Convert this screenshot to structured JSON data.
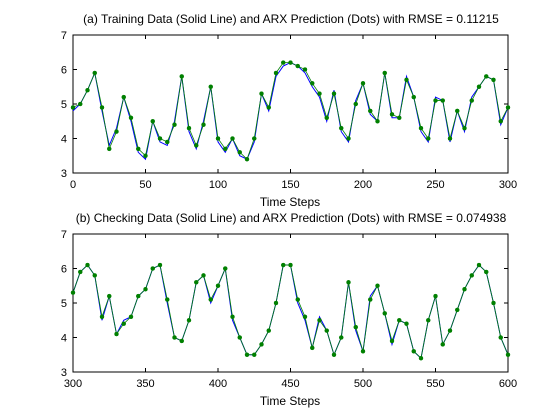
{
  "colors": {
    "training_line": "#0000ff",
    "prediction_dots": "#008000",
    "axes": "#000000",
    "background": "#ffffff"
  },
  "chart_data": [
    {
      "type": "line",
      "title": "(a) Training Data (Solid Line) and ARX Prediction (Dots) with RMSE = 0.11215",
      "xlabel": "Time Steps",
      "ylabel": "",
      "xlim": [
        0,
        300
      ],
      "ylim": [
        3,
        7
      ],
      "x_ticks": [
        "0",
        "50",
        "100",
        "150",
        "200",
        "250",
        "300"
      ],
      "y_ticks": [
        "3",
        "4",
        "5",
        "6",
        "7"
      ],
      "grid": false,
      "x": [
        0,
        5,
        10,
        15,
        20,
        25,
        30,
        35,
        40,
        45,
        50,
        55,
        60,
        65,
        70,
        75,
        80,
        85,
        90,
        95,
        100,
        105,
        110,
        115,
        120,
        125,
        130,
        135,
        140,
        145,
        150,
        155,
        160,
        165,
        170,
        175,
        180,
        185,
        190,
        195,
        200,
        205,
        210,
        215,
        220,
        225,
        230,
        235,
        240,
        245,
        250,
        255,
        260,
        265,
        270,
        275,
        280,
        285,
        290,
        295,
        300
      ],
      "series": [
        {
          "name": "",
          "role": "data",
          "style": "solid line",
          "values": [
            4.8,
            5.0,
            5.4,
            5.9,
            4.8,
            3.8,
            4.3,
            5.2,
            4.5,
            3.6,
            3.4,
            4.5,
            3.9,
            3.8,
            4.5,
            5.8,
            4.2,
            3.7,
            4.5,
            5.5,
            3.9,
            3.6,
            4.0,
            3.5,
            3.4,
            3.9,
            5.3,
            4.8,
            5.8,
            6.1,
            6.2,
            6.1,
            5.9,
            5.5,
            5.2,
            4.5,
            5.4,
            4.2,
            3.9,
            5.1,
            5.6,
            4.7,
            4.5,
            5.9,
            4.6,
            4.6,
            5.8,
            5.2,
            4.2,
            3.9,
            5.2,
            5.1,
            3.9,
            4.8,
            4.2,
            5.2,
            5.5,
            5.8,
            5.7,
            4.4,
            4.9
          ]
        },
        {
          "name": "",
          "role": "prediction",
          "style": "dots",
          "values": [
            4.9,
            5.0,
            5.4,
            5.9,
            4.9,
            3.7,
            4.2,
            5.2,
            4.6,
            3.7,
            3.5,
            4.5,
            4.0,
            3.9,
            4.4,
            5.8,
            4.3,
            3.8,
            4.4,
            5.5,
            4.0,
            3.7,
            4.0,
            3.6,
            3.4,
            4.0,
            5.3,
            4.9,
            5.9,
            6.2,
            6.2,
            6.1,
            6.0,
            5.6,
            5.3,
            4.6,
            5.3,
            4.3,
            4.0,
            5.0,
            5.6,
            4.8,
            4.5,
            5.9,
            4.7,
            4.6,
            5.7,
            5.2,
            4.3,
            4.0,
            5.1,
            5.1,
            4.0,
            4.8,
            4.3,
            5.1,
            5.5,
            5.8,
            5.7,
            4.5,
            4.9
          ]
        }
      ]
    },
    {
      "type": "line",
      "title": "(b) Checking Data (Solid Line) and ARX Prediction (Dots) with RMSE = 0.074938",
      "xlabel": "Time Steps",
      "ylabel": "",
      "xlim": [
        300,
        600
      ],
      "ylim": [
        3,
        7
      ],
      "x_ticks": [
        "300",
        "350",
        "400",
        "450",
        "500",
        "550",
        "600"
      ],
      "y_ticks": [
        "3",
        "4",
        "5",
        "6",
        "7"
      ],
      "grid": false,
      "x": [
        300,
        305,
        310,
        315,
        320,
        325,
        330,
        335,
        340,
        345,
        350,
        355,
        360,
        365,
        370,
        375,
        380,
        385,
        390,
        395,
        400,
        405,
        410,
        415,
        420,
        425,
        430,
        435,
        440,
        445,
        450,
        455,
        460,
        465,
        470,
        475,
        480,
        485,
        490,
        495,
        500,
        505,
        510,
        515,
        520,
        525,
        530,
        535,
        540,
        545,
        550,
        555,
        560,
        565,
        570,
        575,
        580,
        585,
        590,
        595,
        600
      ],
      "series": [
        {
          "name": "",
          "role": "data",
          "style": "solid line",
          "values": [
            5.3,
            5.9,
            6.1,
            5.8,
            4.5,
            5.2,
            4.1,
            4.5,
            4.6,
            5.2,
            5.4,
            6.0,
            6.1,
            5.0,
            4.0,
            3.9,
            4.5,
            5.6,
            5.8,
            5.0,
            5.5,
            6.0,
            4.5,
            4.0,
            3.5,
            3.5,
            3.8,
            4.2,
            5.0,
            6.1,
            6.1,
            5.0,
            4.5,
            3.7,
            4.6,
            4.2,
            3.5,
            4.0,
            5.6,
            4.2,
            3.6,
            5.2,
            5.5,
            4.7,
            3.8,
            4.5,
            4.4,
            3.6,
            3.4,
            4.5,
            5.2,
            3.8,
            4.2,
            4.8,
            5.4,
            5.8,
            6.1,
            5.9,
            5.0,
            4.0,
            3.5
          ]
        },
        {
          "name": "",
          "role": "prediction",
          "style": "dots",
          "values": [
            5.3,
            5.9,
            6.1,
            5.8,
            4.6,
            5.2,
            4.1,
            4.4,
            4.6,
            5.2,
            5.4,
            6.0,
            6.1,
            5.1,
            4.0,
            3.9,
            4.5,
            5.6,
            5.8,
            5.1,
            5.5,
            6.0,
            4.6,
            4.0,
            3.5,
            3.5,
            3.8,
            4.2,
            5.0,
            6.1,
            6.1,
            5.1,
            4.6,
            3.7,
            4.5,
            4.2,
            3.5,
            4.0,
            5.6,
            4.3,
            3.6,
            5.1,
            5.5,
            4.7,
            3.9,
            4.5,
            4.4,
            3.6,
            3.4,
            4.5,
            5.2,
            3.8,
            4.2,
            4.8,
            5.4,
            5.8,
            6.1,
            5.9,
            5.0,
            4.0,
            3.5
          ]
        }
      ]
    }
  ]
}
